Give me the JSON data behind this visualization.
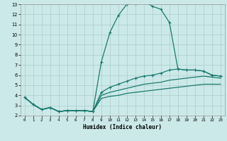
{
  "xlabel": "Humidex (Indice chaleur)",
  "background_color": "#cce9e9",
  "grid_color": "#aacccc",
  "line_color": "#1a7a6e",
  "xlim": [
    -0.5,
    23.5
  ],
  "ylim": [
    2,
    13
  ],
  "xticks": [
    0,
    1,
    2,
    3,
    4,
    5,
    6,
    7,
    8,
    9,
    10,
    11,
    12,
    13,
    14,
    15,
    16,
    17,
    18,
    19,
    20,
    21,
    22,
    23
  ],
  "yticks": [
    2,
    3,
    4,
    5,
    6,
    7,
    8,
    9,
    10,
    11,
    12,
    13
  ],
  "series": {
    "peak_line": {
      "x": [
        0,
        1,
        2,
        3,
        4,
        5,
        6,
        7,
        8,
        9,
        10,
        11,
        12,
        13,
        14,
        15,
        16,
        17,
        18,
        19,
        20,
        21,
        22,
        23
      ],
      "y": [
        3.8,
        3.1,
        2.6,
        2.8,
        2.4,
        2.5,
        2.5,
        2.5,
        2.4,
        7.3,
        10.2,
        11.9,
        13.0,
        13.1,
        13.3,
        12.8,
        12.5,
        11.2,
        6.6,
        6.5,
        6.5,
        6.4,
        6.0,
        5.9
      ]
    },
    "upper_line": {
      "x": [
        0,
        1,
        2,
        3,
        4,
        5,
        6,
        7,
        8,
        9,
        10,
        11,
        12,
        13,
        14,
        15,
        16,
        17,
        18,
        19,
        20,
        21,
        22,
        23
      ],
      "y": [
        3.8,
        3.1,
        2.6,
        2.8,
        2.4,
        2.5,
        2.5,
        2.5,
        2.4,
        4.3,
        4.8,
        5.1,
        5.4,
        5.7,
        5.9,
        6.0,
        6.2,
        6.5,
        6.6,
        6.5,
        6.5,
        6.4,
        6.0,
        5.9
      ]
    },
    "mid_line": {
      "x": [
        0,
        1,
        2,
        3,
        4,
        5,
        6,
        7,
        8,
        9,
        10,
        11,
        12,
        13,
        14,
        15,
        16,
        17,
        18,
        19,
        20,
        21,
        22,
        23
      ],
      "y": [
        3.8,
        3.1,
        2.6,
        2.8,
        2.4,
        2.5,
        2.5,
        2.5,
        2.4,
        4.0,
        4.3,
        4.5,
        4.7,
        4.9,
        5.1,
        5.2,
        5.3,
        5.5,
        5.6,
        5.7,
        5.8,
        5.9,
        5.8,
        5.7
      ]
    },
    "lower_line": {
      "x": [
        0,
        1,
        2,
        3,
        4,
        5,
        6,
        7,
        8,
        9,
        10,
        11,
        12,
        13,
        14,
        15,
        16,
        17,
        18,
        19,
        20,
        21,
        22,
        23
      ],
      "y": [
        3.8,
        3.1,
        2.6,
        2.8,
        2.4,
        2.5,
        2.5,
        2.5,
        2.4,
        3.7,
        3.9,
        4.0,
        4.2,
        4.3,
        4.4,
        4.5,
        4.6,
        4.7,
        4.8,
        4.9,
        5.0,
        5.1,
        5.1,
        5.1
      ]
    }
  }
}
